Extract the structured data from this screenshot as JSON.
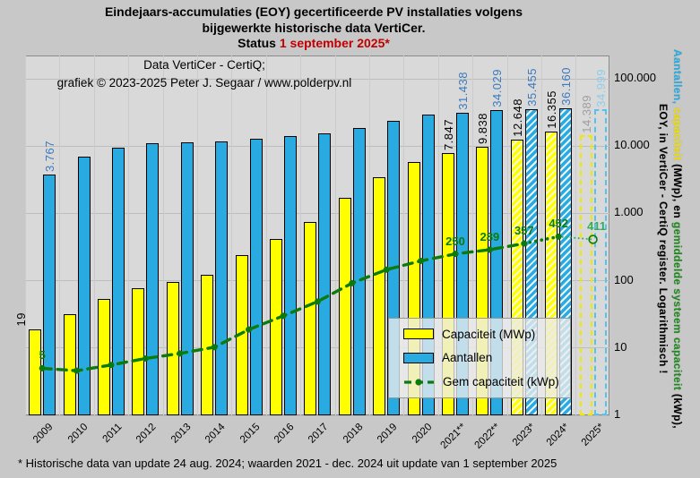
{
  "title": {
    "line1": "Eindejaars-accumulaties (EOY) gecertificeerde PV installaties volgens",
    "line2": "bijgewerkte historische data VertiCer.",
    "status_prefix": "Status ",
    "status_date": "1 september 2025*"
  },
  "chart_header": {
    "line1": "Data VertiCer - CertiQ;",
    "line2": "grafiek © 2023-2025 Peter J. Segaar / www.polderpv.nl"
  },
  "y_axis": {
    "ticks_bottom_up": [
      "1",
      "10",
      "100",
      "1.000",
      "10.000",
      "100.000"
    ],
    "title_line1_parts": [
      {
        "text": "Aantallen,",
        "color": "#29abe2"
      },
      {
        "text": " capaciteit",
        "color": "#f0e000"
      },
      {
        "text": " (MWp), en ",
        "color": "#000000"
      },
      {
        "text": "gemiddelde systeem capaciteit",
        "color": "#1e8a1e"
      },
      {
        "text": " (kWp),",
        "color": "#000000"
      }
    ],
    "title_line2": "EOY, in VertiCer - CertiQ register. Logarithmisch !"
  },
  "legend": {
    "items": [
      {
        "label": "Capaciteit (MWp)",
        "swatch": "bar-yellow"
      },
      {
        "label": "Aantallen",
        "swatch": "bar-blue"
      },
      {
        "label": "Gem capaciteit (kWp)",
        "swatch": "line-green"
      }
    ]
  },
  "footer": {
    "note": "* Historische data van update 24 aug. 2024; waarden 2021 - dec. 2024 uit update van 1 september 2025"
  },
  "colors": {
    "page_bg": "#c8c8c8",
    "panel_bg": "#d9d9d9",
    "capacity_bar": "#ffff00",
    "aantallen_bar": "#29abe2",
    "green_line": "#0d7a0d",
    "green_line_light": "#2fae60",
    "cap_label": "#000000",
    "cap_label_2025": "#9e9e9e",
    "aant_label": "#3a7abf",
    "aant_label_2025": "#8ccdec",
    "status_red": "#c00000"
  },
  "chart_data": {
    "type": "bar",
    "log_scale": true,
    "ylim": [
      1,
      100000
    ],
    "legend_position": "inside-bottom-right",
    "categories": [
      "2009",
      "2010",
      "2011",
      "2012",
      "2013",
      "2014",
      "2015",
      "2016",
      "2017",
      "2018",
      "2019",
      "2020",
      "2021**",
      "2022**",
      "2023*",
      "2024*",
      "2025*"
    ],
    "series": [
      {
        "name": "Capaciteit (MWp)",
        "type": "bar",
        "color": "#ffff00",
        "values": [
          19,
          32,
          54,
          78,
          96,
          122,
          240,
          420,
          750,
          1700,
          3440,
          5800,
          7847,
          9838,
          12648,
          16355,
          14389
        ],
        "labels": [
          "19",
          "",
          "",
          "",
          "",
          "",
          "",
          "",
          "",
          "",
          "",
          "",
          "7.847",
          "9.838",
          "12.648",
          "16.355",
          "14.389"
        ]
      },
      {
        "name": "Aantallen",
        "type": "bar",
        "color": "#29abe2",
        "values": [
          3767,
          6900,
          9600,
          11100,
          11500,
          11900,
          12800,
          13900,
          15300,
          18500,
          23500,
          29500,
          31438,
          34029,
          35455,
          36160,
          34999
        ],
        "labels": [
          "3.767",
          "",
          "",
          "",
          "",
          "",
          "",
          "",
          "",
          "",
          "",
          "",
          "31.438",
          "34.029",
          "35.455",
          "36.160",
          "34.999"
        ]
      },
      {
        "name": "Gem capaciteit (kWp)",
        "type": "line",
        "color": "#0d7a0d",
        "values": [
          5,
          4.6,
          5.6,
          7,
          8.3,
          10.3,
          18.8,
          30,
          49,
          92,
          146,
          197,
          250,
          289,
          357,
          452,
          411
        ],
        "labels": [
          "5",
          "",
          "",
          "",
          "",
          "",
          "",
          "",
          "",
          "",
          "",
          "",
          "250",
          "289",
          "357",
          "452",
          "411"
        ]
      }
    ],
    "bar_style_by_year": [
      "solid",
      "solid",
      "solid",
      "solid",
      "solid",
      "solid",
      "solid",
      "solid",
      "solid",
      "solid",
      "solid",
      "solid",
      "solid",
      "solid",
      "hatched",
      "hatched",
      "dashed-outline"
    ],
    "line_style_segments": [
      "dashed 2009-2023",
      "dotted 2023-2024",
      "fine-dotted 2024-2025 with open circle marker"
    ]
  }
}
